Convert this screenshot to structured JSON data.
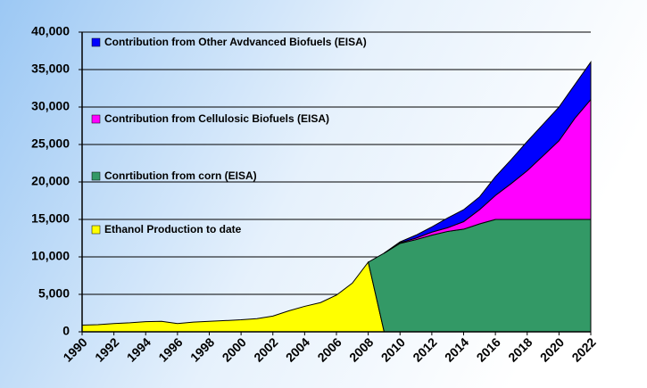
{
  "chart_data": {
    "type": "stacked-area",
    "x": [
      1990,
      1991,
      1992,
      1993,
      1994,
      1995,
      1996,
      1997,
      1998,
      1999,
      2000,
      2001,
      2002,
      2003,
      2004,
      2005,
      2006,
      2007,
      2008,
      2009,
      2010,
      2011,
      2012,
      2013,
      2014,
      2015,
      2016,
      2017,
      2018,
      2019,
      2020,
      2021,
      2022
    ],
    "xlim": [
      1990,
      2022
    ],
    "xticks": [
      1990,
      1992,
      1994,
      1996,
      1998,
      2000,
      2002,
      2004,
      2006,
      2008,
      2010,
      2012,
      2014,
      2016,
      2018,
      2020,
      2022
    ],
    "ylim": [
      0,
      40000
    ],
    "yticks": [
      0,
      {
        "value": 5000,
        "label": "5,000"
      },
      {
        "value": 10000,
        "label": "10,000"
      },
      {
        "value": 15000,
        "label": "15,000"
      },
      {
        "value": 20000,
        "label": "20,000"
      },
      {
        "value": 25000,
        "label": "25,000"
      },
      {
        "value": 30000,
        "label": "30,000"
      },
      {
        "value": 35000,
        "label": "35,000"
      },
      {
        "value": 40000,
        "label": "40,000"
      }
    ],
    "grid": true,
    "legend": "upper left",
    "series": [
      {
        "name": "Ethanol Production to date",
        "color": "#ffff00",
        "values": [
          900,
          950,
          1100,
          1200,
          1350,
          1400,
          1100,
          1300,
          1400,
          1500,
          1600,
          1750,
          2100,
          2800,
          3400,
          3900,
          4900,
          6500,
          9300,
          0,
          null,
          null,
          null,
          null,
          null,
          null,
          null,
          null,
          null,
          null,
          null,
          null,
          null
        ]
      },
      {
        "name": "Conrtibution from corn (EISA)",
        "color": "#339966",
        "values": [
          null,
          null,
          null,
          null,
          null,
          null,
          null,
          null,
          null,
          null,
          null,
          null,
          null,
          null,
          null,
          null,
          null,
          null,
          0,
          10500,
          11800,
          12300,
          12900,
          13400,
          13700,
          14400,
          15000,
          15000,
          15000,
          15000,
          15000,
          15000,
          15000
        ]
      },
      {
        "name": "Contribution from Cellulosic Biofuels (EISA)",
        "color": "#ff00ff",
        "values": [
          null,
          null,
          null,
          null,
          null,
          null,
          null,
          null,
          null,
          null,
          null,
          null,
          null,
          null,
          null,
          null,
          null,
          null,
          null,
          0,
          100,
          200,
          400,
          500,
          1000,
          1900,
          3200,
          4800,
          6500,
          8500,
          10500,
          13500,
          16000
        ]
      },
      {
        "name": "Contribution from Other Avdvanced Biofuels (EISA)",
        "color": "#0000ff",
        "values": [
          null,
          null,
          null,
          null,
          null,
          null,
          null,
          null,
          null,
          null,
          null,
          null,
          null,
          null,
          null,
          null,
          null,
          null,
          null,
          0,
          100,
          400,
          700,
          1300,
          1600,
          1700,
          2500,
          3200,
          3900,
          4200,
          4500,
          4500,
          5000
        ]
      }
    ]
  }
}
